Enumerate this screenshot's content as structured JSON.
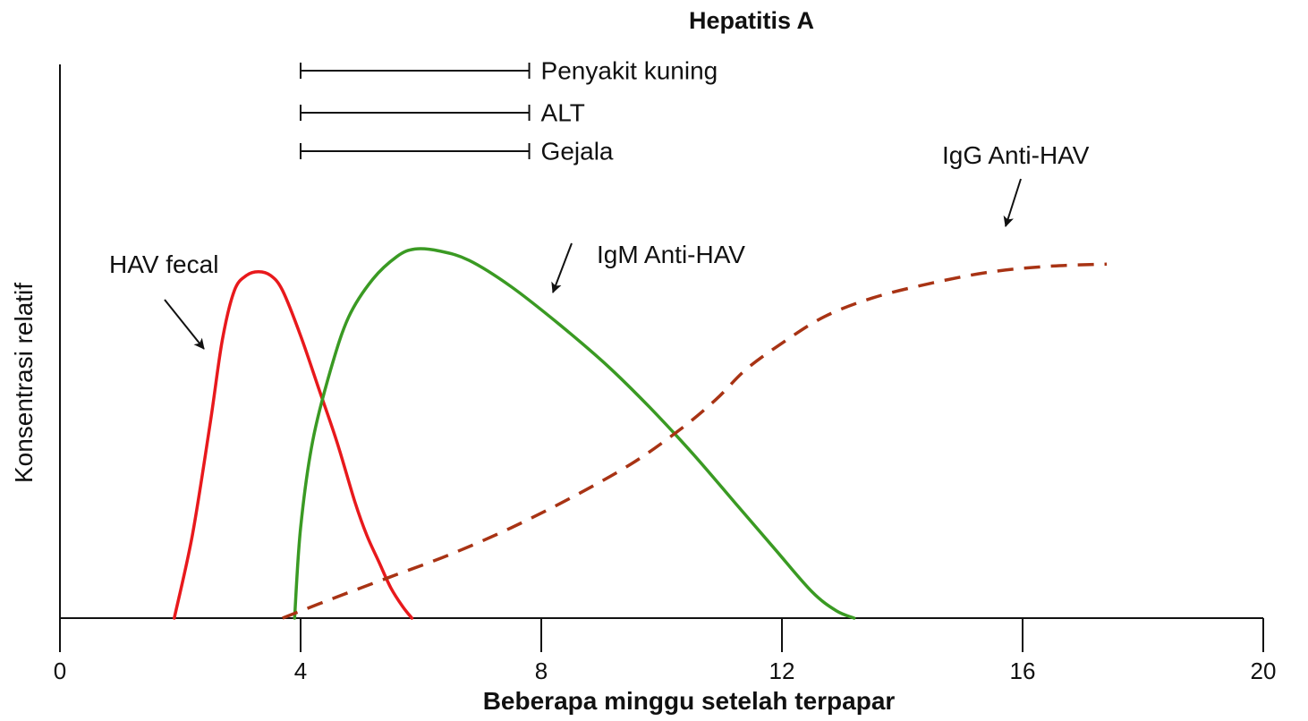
{
  "chart_data": {
    "type": "line",
    "title": "Hepatitis A",
    "xlabel": "Beberapa minggu setelah terpapar",
    "ylabel": "Konsentrasi relatif",
    "xlim": [
      0,
      20
    ],
    "ylim": [
      0,
      100
    ],
    "xticks": [
      "0",
      "4",
      "8",
      "12",
      "16",
      "20"
    ],
    "grid": false,
    "series": [
      {
        "name": "HAV fecal",
        "color": "#e8191c",
        "style": "solid",
        "points": [
          [
            1.9,
            0
          ],
          [
            2.2,
            22
          ],
          [
            2.5,
            52
          ],
          [
            2.7,
            74
          ],
          [
            2.9,
            87
          ],
          [
            3.1,
            91
          ],
          [
            3.3,
            92
          ],
          [
            3.5,
            91
          ],
          [
            3.7,
            87
          ],
          [
            4.0,
            75
          ],
          [
            4.3,
            61
          ],
          [
            4.6,
            47
          ],
          [
            4.9,
            31
          ],
          [
            5.1,
            22
          ],
          [
            5.3,
            15
          ],
          [
            5.5,
            8
          ],
          [
            5.7,
            3
          ],
          [
            5.85,
            0
          ]
        ]
      },
      {
        "name": "IgM Anti-HAV",
        "color": "#3a9a23",
        "style": "solid",
        "points": [
          [
            3.9,
            0
          ],
          [
            4.0,
            24
          ],
          [
            4.2,
            47
          ],
          [
            4.5,
            66
          ],
          [
            4.8,
            80
          ],
          [
            5.2,
            90
          ],
          [
            5.6,
            96
          ],
          [
            5.9,
            98
          ],
          [
            6.3,
            97.5
          ],
          [
            6.8,
            95
          ],
          [
            7.5,
            88
          ],
          [
            8.3,
            78
          ],
          [
            9.1,
            67
          ],
          [
            9.8,
            56
          ],
          [
            10.5,
            44
          ],
          [
            11.2,
            31
          ],
          [
            11.9,
            18
          ],
          [
            12.5,
            7
          ],
          [
            12.9,
            2
          ],
          [
            13.2,
            0
          ]
        ]
      },
      {
        "name": "IgG Anti-HAV",
        "color": "#a83314",
        "style": "dashed",
        "points": [
          [
            3.7,
            0
          ],
          [
            4.5,
            5
          ],
          [
            5.5,
            11
          ],
          [
            6.5,
            17
          ],
          [
            7.5,
            24
          ],
          [
            8.5,
            32
          ],
          [
            9.5,
            41
          ],
          [
            10.3,
            50
          ],
          [
            10.9,
            58
          ],
          [
            11.4,
            66
          ],
          [
            12,
            73
          ],
          [
            12.7,
            80
          ],
          [
            13.5,
            85
          ],
          [
            14.5,
            89
          ],
          [
            15.5,
            92
          ],
          [
            16.5,
            93.5
          ],
          [
            17.4,
            94
          ]
        ]
      }
    ],
    "intervals": [
      {
        "label": "Penyakit kuning",
        "start": 4,
        "end": 7.8
      },
      {
        "label": "ALT",
        "start": 4,
        "end": 7.8
      },
      {
        "label": "Gejala",
        "start": 4,
        "end": 7.8
      }
    ]
  }
}
